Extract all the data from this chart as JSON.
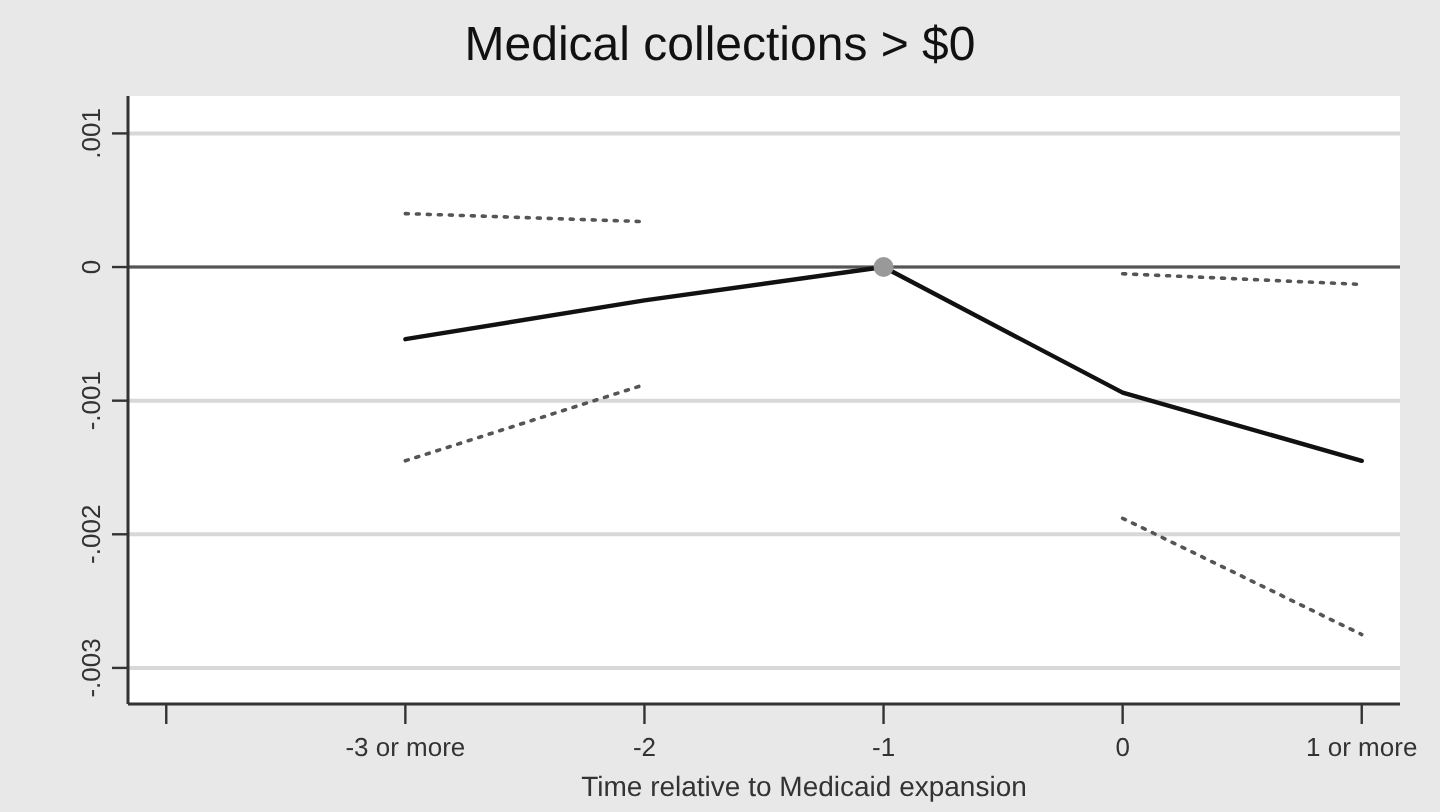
{
  "chart_data": {
    "type": "line",
    "title": "Medical collections > $0",
    "xlabel": "Time relative to Medicaid expansion",
    "x": [
      -3,
      -2,
      -1,
      0,
      1
    ],
    "series": [
      {
        "color": "#111111",
        "values": [
          -0.00054,
          -0.00025,
          0,
          -0.00094,
          -0.00145
        ]
      },
      {
        "color": "#555555",
        "line_style": "dotted",
        "values": [
          0.0004,
          0.00034,
          null,
          -5e-05,
          -0.00013
        ]
      },
      {
        "color": "#555555",
        "line_style": "dotted",
        "values": [
          -0.00145,
          -0.00088,
          null,
          -0.00188,
          -0.00275
        ]
      },
      {
        "type": "scatter",
        "color": "#999999",
        "marker": "circle",
        "x": [
          -1
        ],
        "values": [
          0
        ]
      }
    ],
    "xlim": [
      -4.16,
      1.16
    ],
    "ylim": [
      -0.00327,
      0.00128
    ],
    "xticks": [
      {
        "value": -4,
        "label": null
      },
      {
        "value": -3,
        "label": "-3 or more"
      },
      -2,
      -1,
      0,
      {
        "value": 1,
        "label": "1 or more"
      }
    ],
    "yticks": [
      {
        "value": 0.001,
        "label": ".001"
      },
      0,
      {
        "value": -0.001,
        "label": "-.001"
      },
      {
        "value": -0.002,
        "label": "-.002"
      },
      {
        "value": -0.003,
        "label": "-.003"
      }
    ],
    "grid": "y",
    "ref_lines": [
      {
        "axis": "y",
        "value": 0,
        "color": "#555555"
      }
    ]
  }
}
